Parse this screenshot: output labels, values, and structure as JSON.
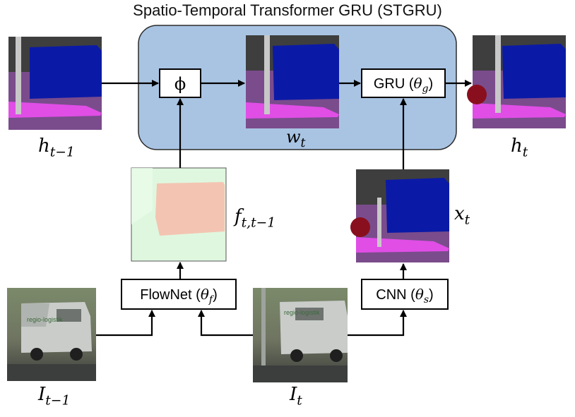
{
  "title": "Spatio-Temporal Transformer GRU (STGRU)",
  "colors": {
    "stgru_fill": "#a9c4e3",
    "stgru_border": "#2b2b2b",
    "road": "#7a4c8c",
    "car": "#0b1aa6",
    "sidewalk": "#e04ee6",
    "pole": "#c8c8c8",
    "vegetation": "#5a7e2a",
    "dark_gray": "#3e3e3e",
    "person": "#8a0f1e",
    "flow_bg": "#dff7df",
    "flow_car": "#f4c4b2"
  },
  "nodes": {
    "phi": "ϕ",
    "gru": {
      "text": "GRU (",
      "param": "θ",
      "sub": "g",
      "close": ")"
    },
    "flownet": {
      "text": "FlowNet (",
      "param": "θ",
      "sub": "f",
      "close": ")"
    },
    "cnn": {
      "text": "CNN (",
      "param": "θ",
      "sub": "s",
      "close": ")"
    }
  },
  "labels": {
    "h_prev": {
      "main": "h",
      "sub": "t−1"
    },
    "w_t": {
      "main": "w",
      "sub": "t"
    },
    "h_t": {
      "main": "h",
      "sub": "t"
    },
    "f": {
      "main": "f",
      "sub": "t,t−1"
    },
    "x_t": {
      "main": "x",
      "sub": "t"
    },
    "I_prev": {
      "main": "I",
      "sub": "t−1"
    },
    "I_t": {
      "main": "I",
      "sub": "t"
    }
  },
  "photo_text": {
    "van_brand": "regio-logistik"
  }
}
